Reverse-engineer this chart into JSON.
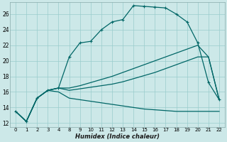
{
  "xlabel": "Humidex (Indice chaleur)",
  "bg_color": "#cce8e8",
  "grid_color": "#99cccc",
  "line_color": "#006666",
  "xlim": [
    -0.5,
    22.5
  ],
  "ylim": [
    11.5,
    27.5
  ],
  "xticks": [
    0,
    1,
    2,
    3,
    4,
    8,
    9,
    10,
    11,
    12,
    13,
    14,
    15,
    16,
    17,
    18,
    19,
    20,
    21,
    22
  ],
  "yticks": [
    12,
    14,
    16,
    18,
    20,
    22,
    24,
    26
  ],
  "series1_x": [
    0,
    1,
    2,
    3,
    4,
    8,
    9,
    10,
    11,
    12,
    13,
    14,
    15,
    16,
    17,
    18,
    19,
    20,
    21,
    22
  ],
  "series1_y": [
    13.5,
    12.2,
    15.2,
    16.2,
    16.5,
    20.5,
    22.3,
    22.5,
    24.0,
    25.0,
    25.3,
    27.1,
    27.0,
    26.9,
    26.8,
    26.0,
    25.0,
    22.3,
    17.2,
    15.0
  ],
  "series2_x": [
    0,
    1,
    2,
    3,
    4,
    8,
    9,
    10,
    11,
    12,
    13,
    14,
    15,
    16,
    17,
    18,
    19,
    20,
    21,
    22
  ],
  "series2_y": [
    13.5,
    12.2,
    15.2,
    16.2,
    16.5,
    16.5,
    16.8,
    17.2,
    17.6,
    18.0,
    18.5,
    19.0,
    19.5,
    20.0,
    20.5,
    21.0,
    21.5,
    22.0,
    20.5,
    15.0
  ],
  "series3_x": [
    0,
    1,
    2,
    3,
    4,
    8,
    9,
    10,
    11,
    12,
    13,
    14,
    15,
    16,
    17,
    18,
    19,
    20,
    21,
    22
  ],
  "series3_y": [
    13.5,
    12.2,
    15.2,
    16.2,
    16.5,
    16.2,
    16.4,
    16.6,
    16.8,
    17.0,
    17.3,
    17.7,
    18.1,
    18.5,
    19.0,
    19.5,
    20.0,
    20.5,
    20.5,
    15.0
  ],
  "series4_x": [
    0,
    1,
    2,
    3,
    4,
    8,
    9,
    10,
    11,
    12,
    13,
    14,
    15,
    16,
    17,
    18,
    19,
    20,
    21,
    22
  ],
  "series4_y": [
    13.5,
    12.2,
    15.2,
    16.2,
    16.0,
    15.2,
    15.0,
    14.8,
    14.6,
    14.4,
    14.2,
    14.0,
    13.8,
    13.7,
    13.6,
    13.5,
    13.5,
    13.5,
    13.5,
    13.5
  ]
}
